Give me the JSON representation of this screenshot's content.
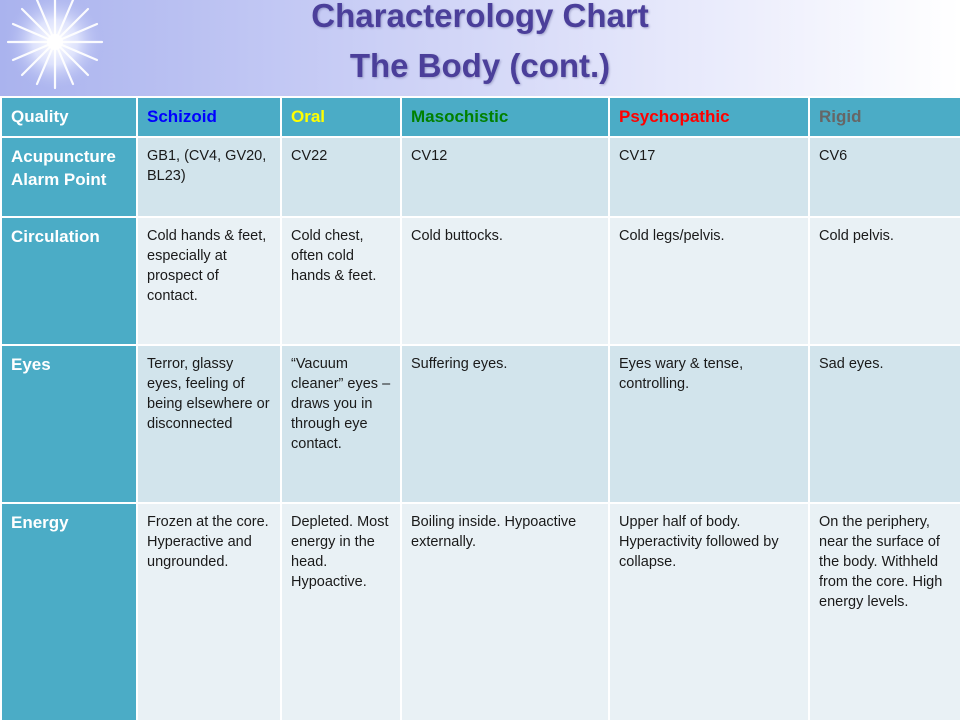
{
  "title": {
    "line1": "Characterology Chart",
    "line2": "The Body (cont.)"
  },
  "colors": {
    "header_bg": "#4bacc6",
    "row_odd": "#d2e4ec",
    "row_even": "#e9f1f5",
    "title": "#4b3f9a"
  },
  "table": {
    "headers": [
      {
        "label": "Quality",
        "color": "#ffffff"
      },
      {
        "label": "Schizoid",
        "color": "#0000ff"
      },
      {
        "label": "Oral",
        "color": "#ffff00"
      },
      {
        "label": "Masochistic",
        "color": "#008000"
      },
      {
        "label": "Psychopathic",
        "color": "#ff0000"
      },
      {
        "label": "Rigid",
        "color": "#666666"
      }
    ],
    "rows": [
      {
        "quality": "Acupuncture Alarm Point",
        "cells": [
          "GB1, (CV4, GV20, BL23)",
          "CV22",
          "CV12",
          "CV17",
          "CV6"
        ]
      },
      {
        "quality": "Circulation",
        "cells": [
          "Cold hands & feet, especially at prospect of contact.",
          "Cold chest, often cold hands & feet.",
          "Cold buttocks.",
          "Cold legs/pelvis.",
          "Cold pelvis."
        ]
      },
      {
        "quality": "Eyes",
        "cells": [
          "Terror, glassy eyes, feeling of being elsewhere or disconnected",
          "“Vacuum cleaner” eyes – draws you in through eye contact.",
          "Suffering eyes.",
          "Eyes wary & tense, controlling.",
          "Sad eyes."
        ]
      },
      {
        "quality": "Energy",
        "cells": [
          "Frozen at the core. Hyperactive and ungrounded.",
          "Depleted. Most energy in the head. Hypoactive.",
          "Boiling inside. Hypoactive externally.",
          "Upper half of body. Hyperactivity followed by collapse.",
          "On the periphery, near the surface of the body. Withheld from the core. High energy levels."
        ]
      }
    ]
  }
}
